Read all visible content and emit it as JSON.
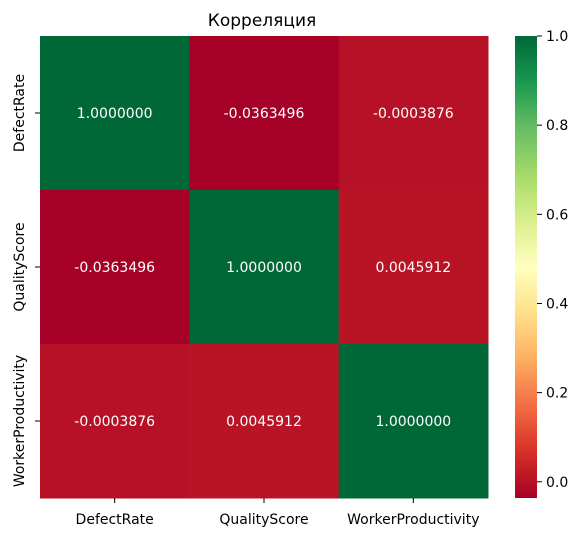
{
  "chart_data": {
    "type": "heatmap",
    "title": "Корреляция",
    "categories": [
      "DefectRate",
      "QualityScore",
      "WorkerProductivity"
    ],
    "row_labels": [
      "DefectRate",
      "QualityScore",
      "WorkerProductivity"
    ],
    "cell_labels": [
      [
        "1.0000000",
        "-0.0363496",
        "-0.0003876"
      ],
      [
        "-0.0363496",
        "1.0000000",
        "0.0045912"
      ],
      [
        "-0.0003876",
        "0.0045912",
        "1.0000000"
      ]
    ],
    "values": [
      [
        1.0,
        -0.0363496,
        -0.0003876
      ],
      [
        -0.0363496,
        1.0,
        0.0045912
      ],
      [
        -0.0003876,
        0.0045912,
        1.0
      ]
    ],
    "colormap": "RdYlGn",
    "colorbar": {
      "range": [
        -0.0363496,
        1.0
      ],
      "ticks": [
        0.0,
        0.2,
        0.4,
        0.6,
        0.8,
        1.0
      ],
      "tick_labels": [
        "0.0",
        "0.2",
        "0.4",
        "0.6",
        "0.8",
        "1.0"
      ]
    },
    "colors": {
      "low": "#a50026",
      "high": "#006837"
    },
    "xlabel": "",
    "ylabel": ""
  }
}
